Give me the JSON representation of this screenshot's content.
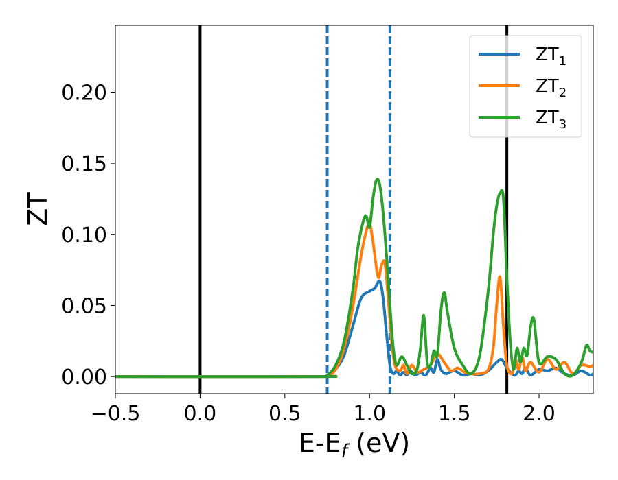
{
  "chart_data": {
    "type": "line",
    "xlabel": "E-E",
    "xlabel_sub": "f",
    "xlabel_unit": " (eV)",
    "ylabel": "ZT",
    "xlim": [
      -0.5,
      2.32
    ],
    "ylim": [
      -0.012,
      0.247
    ],
    "xticks": [
      -0.5,
      0.0,
      0.5,
      1.0,
      1.5,
      2.0
    ],
    "xtick_labels": [
      "−0.5",
      "0.0",
      "0.5",
      "1.0",
      "1.5",
      "2.0"
    ],
    "yticks": [
      0.0,
      0.05,
      0.1,
      0.15,
      0.2
    ],
    "ytick_labels": [
      "0.00",
      "0.05",
      "0.10",
      "0.15",
      "0.20"
    ],
    "grid": false,
    "legend_position": "top-right",
    "vertical_lines": [
      {
        "x": 0.0,
        "style": "solid",
        "color": "#000000"
      },
      {
        "x": 0.75,
        "style": "dashed",
        "color": "#1f77b4"
      },
      {
        "x": 1.12,
        "style": "dashed",
        "color": "#1f77b4"
      },
      {
        "x": 1.81,
        "style": "solid",
        "color": "#000000"
      }
    ],
    "series": [
      {
        "name": "ZT",
        "name_sub": "1",
        "color": "#1f77b4",
        "x": [
          -0.5,
          0.7,
          0.75,
          0.8,
          0.85,
          0.9,
          0.95,
          1.0,
          1.03,
          1.06,
          1.08,
          1.1,
          1.12,
          1.14,
          1.16,
          1.18,
          1.2,
          1.22,
          1.24,
          1.27,
          1.3,
          1.33,
          1.36,
          1.38,
          1.4,
          1.42,
          1.45,
          1.5,
          1.55,
          1.6,
          1.65,
          1.7,
          1.75,
          1.78,
          1.81,
          1.84,
          1.86,
          1.88,
          1.9,
          1.92,
          1.95,
          2.0,
          2.05,
          2.1,
          2.15,
          2.2,
          2.25,
          2.3,
          2.32
        ],
        "y": [
          0.0,
          0.0,
          0.001,
          0.005,
          0.015,
          0.035,
          0.055,
          0.06,
          0.062,
          0.067,
          0.055,
          0.03,
          0.008,
          0.002,
          0.004,
          0.001,
          0.003,
          0.001,
          0.004,
          0.001,
          0.003,
          0.001,
          0.006,
          0.003,
          0.012,
          0.005,
          0.002,
          0.004,
          0.001,
          0.002,
          0.001,
          0.004,
          0.01,
          0.012,
          0.006,
          0.002,
          0.001,
          0.004,
          0.002,
          0.006,
          0.001,
          0.005,
          0.004,
          0.006,
          0.002,
          0.001,
          0.004,
          0.001,
          0.002
        ]
      },
      {
        "name": "ZT",
        "name_sub": "2",
        "color": "#ff7f0e",
        "x": [
          -0.5,
          0.7,
          0.75,
          0.8,
          0.85,
          0.9,
          0.95,
          0.98,
          1.0,
          1.02,
          1.05,
          1.07,
          1.09,
          1.11,
          1.13,
          1.15,
          1.18,
          1.2,
          1.22,
          1.25,
          1.28,
          1.32,
          1.36,
          1.4,
          1.44,
          1.48,
          1.52,
          1.56,
          1.6,
          1.65,
          1.7,
          1.73,
          1.75,
          1.77,
          1.79,
          1.81,
          1.84,
          1.86,
          1.88,
          1.9,
          1.92,
          1.95,
          2.0,
          2.05,
          2.1,
          2.15,
          2.2,
          2.25,
          2.3,
          2.32
        ],
        "y": [
          0.0,
          0.0,
          0.001,
          0.005,
          0.02,
          0.048,
          0.085,
          0.102,
          0.108,
          0.095,
          0.07,
          0.078,
          0.08,
          0.055,
          0.025,
          0.008,
          0.004,
          0.008,
          0.002,
          0.008,
          0.003,
          0.005,
          0.008,
          0.016,
          0.01,
          0.004,
          0.006,
          0.003,
          0.002,
          0.002,
          0.005,
          0.02,
          0.05,
          0.07,
          0.035,
          0.008,
          0.002,
          0.012,
          0.005,
          0.014,
          0.004,
          0.01,
          0.003,
          0.012,
          0.005,
          0.01,
          0.002,
          0.008,
          0.007,
          0.008
        ]
      },
      {
        "name": "ZT",
        "name_sub": "3",
        "color": "#2ca02c",
        "x": [
          -0.5,
          0.7,
          0.75,
          0.8,
          0.85,
          0.9,
          0.93,
          0.96,
          0.98,
          1.0,
          1.02,
          1.04,
          1.06,
          1.08,
          1.1,
          1.12,
          1.14,
          1.16,
          1.19,
          1.22,
          1.25,
          1.28,
          1.3,
          1.32,
          1.34,
          1.36,
          1.38,
          1.4,
          1.42,
          1.44,
          1.46,
          1.5,
          1.55,
          1.6,
          1.65,
          1.7,
          1.73,
          1.75,
          1.77,
          1.79,
          1.81,
          1.83,
          1.85,
          1.87,
          1.89,
          1.91,
          1.93,
          1.95,
          1.97,
          2.0,
          2.05,
          2.1,
          2.15,
          2.2,
          2.25,
          2.28,
          2.3,
          2.32
        ],
        "y": [
          0.0,
          0.0,
          0.001,
          0.008,
          0.025,
          0.06,
          0.09,
          0.108,
          0.113,
          0.105,
          0.125,
          0.138,
          0.135,
          0.115,
          0.085,
          0.05,
          0.02,
          0.008,
          0.014,
          0.008,
          0.002,
          0.005,
          0.02,
          0.043,
          0.01,
          0.008,
          0.018,
          0.015,
          0.045,
          0.059,
          0.045,
          0.02,
          0.008,
          0.002,
          0.015,
          0.06,
          0.1,
          0.12,
          0.129,
          0.125,
          0.07,
          0.025,
          0.005,
          0.02,
          0.01,
          0.02,
          0.015,
          0.035,
          0.04,
          0.01,
          0.014,
          0.012,
          0.002,
          0.001,
          0.01,
          0.022,
          0.018,
          0.017
        ]
      }
    ]
  }
}
